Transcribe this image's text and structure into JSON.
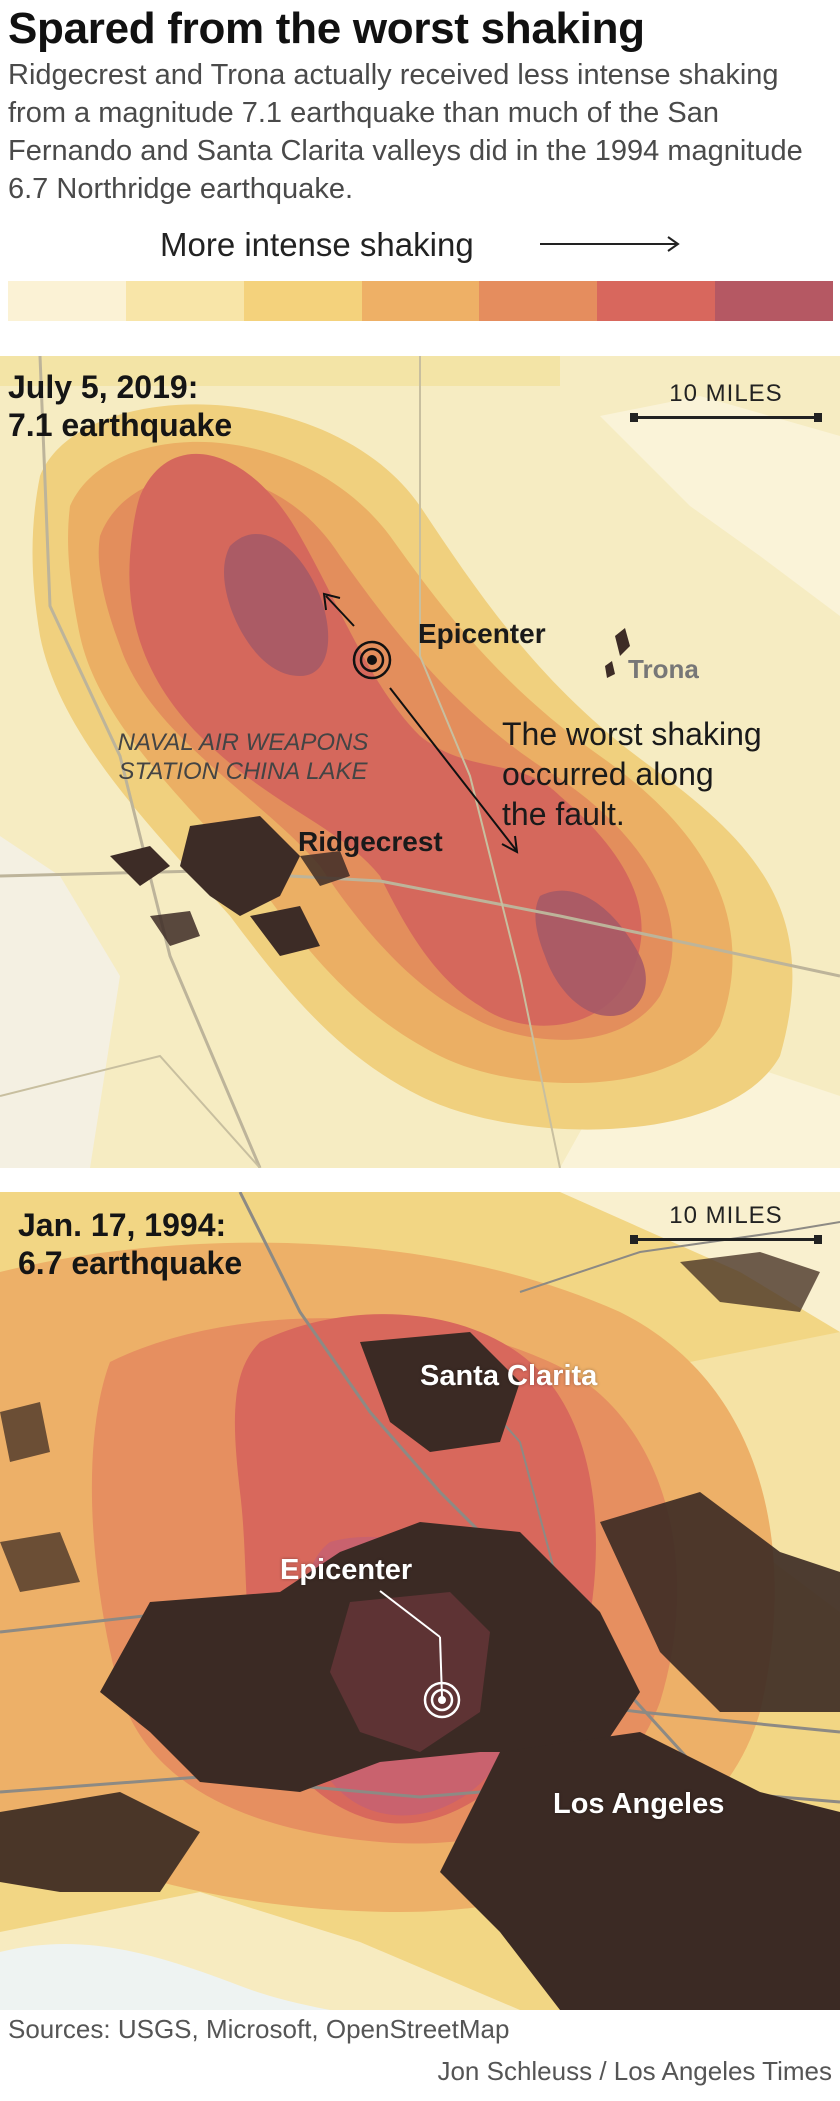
{
  "headline": "Spared from the worst shaking",
  "dek": "Ridgecrest and Trona actually received less intense shaking from a magnitude 7.1 earthquake than much of the San Fernando and Santa Clarita valleys did in the 1994 magnitude 6.7 Northridge earthquake.",
  "legend": {
    "title": "More intense shaking",
    "colors": [
      "#fbf2d5",
      "#f8e5a8",
      "#f4d27c",
      "#eeb066",
      "#e58d5e",
      "#d8675d",
      "#b55863"
    ]
  },
  "map_2019": {
    "date": "July 5, 2019:",
    "quake": "7.1 earthquake",
    "scale_label": "10 MILES",
    "labels": {
      "epicenter": "Epicenter",
      "trona": "Trona",
      "ridgecrest": "Ridgecrest",
      "naval_line1": "NAVAL AIR WEAPONS",
      "naval_line2": "STATION CHINA LAKE",
      "note_line1": "The worst shaking",
      "note_line2": "occurred along",
      "note_line3": "the fault."
    }
  },
  "map_1994": {
    "date": "Jan. 17, 1994:",
    "quake": "6.7 earthquake",
    "scale_label": "10 MILES",
    "labels": {
      "santa_clarita": "Santa Clarita",
      "epicenter": "Epicenter",
      "los_angeles": "Los Angeles"
    }
  },
  "sources": "Sources: USGS, Microsoft, OpenStreetMap",
  "credit": "Jon Schleuss / Los Angeles Times"
}
